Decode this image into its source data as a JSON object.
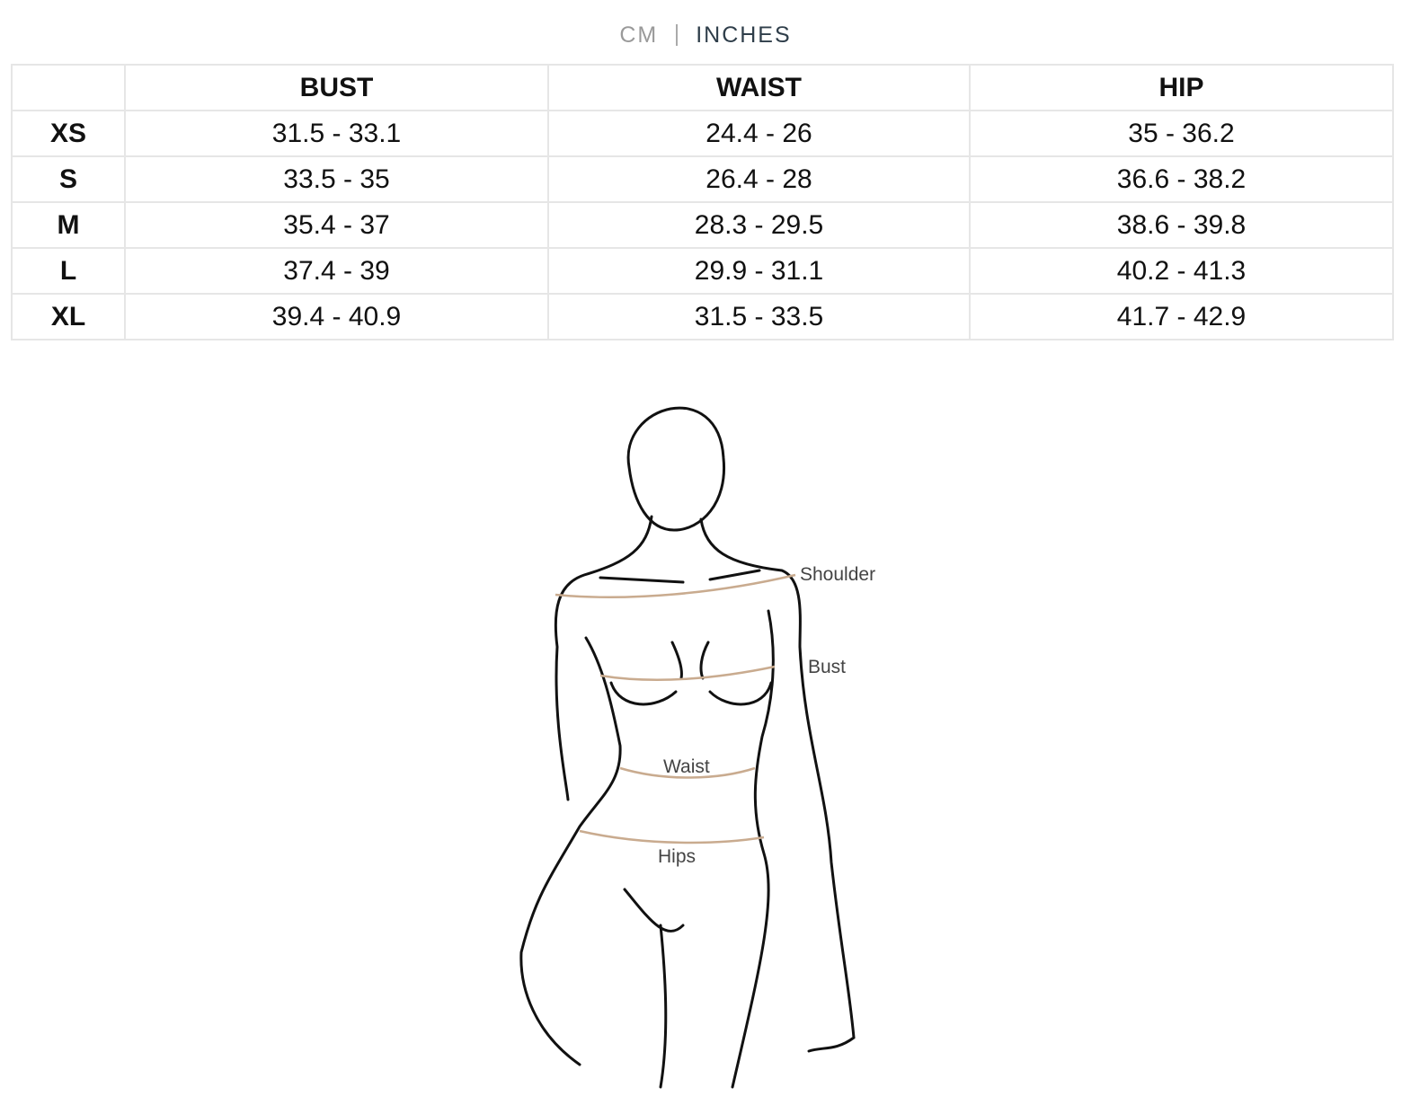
{
  "unit_toggle": {
    "options": [
      "CM",
      "INCHES"
    ],
    "selected": "INCHES"
  },
  "table": {
    "headers": [
      "",
      "BUST",
      "WAIST",
      "HIP"
    ],
    "rows": [
      {
        "size": "XS",
        "bust": "31.5 - 33.1",
        "waist": "24.4 - 26",
        "hip": "35 - 36.2"
      },
      {
        "size": "S",
        "bust": "33.5 - 35",
        "waist": "26.4 - 28",
        "hip": "36.6 - 38.2"
      },
      {
        "size": "M",
        "bust": "35.4 - 37",
        "waist": "28.3 - 29.5",
        "hip": "38.6 - 39.8"
      },
      {
        "size": "L",
        "bust": "37.4 - 39",
        "waist": "29.9 - 31.1",
        "hip": "40.2 - 41.3"
      },
      {
        "size": "XL",
        "bust": "39.4 - 40.9",
        "waist": "31.5 - 33.5",
        "hip": "41.7 - 42.9"
      }
    ]
  },
  "figure": {
    "labels": {
      "shoulder": "Shoulder",
      "bust": "Bust",
      "waist": "Waist",
      "hips": "Hips"
    },
    "measure_line_color": "#c9ab8f"
  }
}
